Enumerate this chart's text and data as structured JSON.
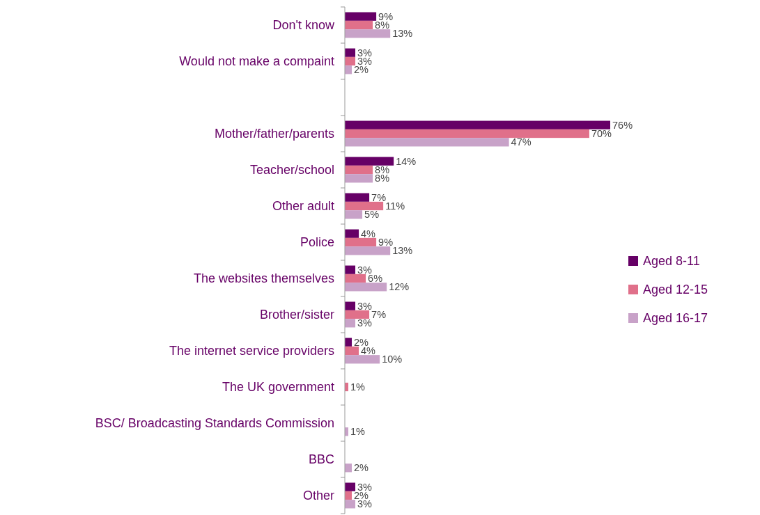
{
  "chart_data": {
    "type": "bar",
    "orientation": "horizontal",
    "categories": [
      "Don't know",
      "Would not make a compaint",
      null,
      "Mother/father/parents",
      "Teacher/school",
      "Other adult",
      "Police",
      "The websites themselves",
      "Brother/sister",
      "The internet service providers",
      "The UK government",
      "BSC/ Broadcasting Standards Commission",
      "BBC",
      "Other"
    ],
    "series": [
      {
        "name": "Aged 8-11",
        "color": "#660066",
        "values": [
          9,
          3,
          null,
          76,
          14,
          7,
          4,
          3,
          3,
          2,
          null,
          null,
          null,
          3
        ],
        "value_labels": [
          "9%",
          "3%",
          null,
          "76%",
          "14%",
          "7%",
          "4%",
          "3%",
          "3%",
          "2%",
          null,
          null,
          null,
          "3%"
        ]
      },
      {
        "name": "Aged 12-15",
        "color": "#e0708a",
        "values": [
          8,
          3,
          null,
          70,
          8,
          11,
          9,
          6,
          7,
          4,
          1,
          null,
          null,
          2
        ],
        "value_labels": [
          "8%",
          "3%",
          null,
          "70%",
          "8%",
          "11%",
          "9%",
          "6%",
          "7%",
          "4%",
          "1%",
          null,
          null,
          "2%"
        ]
      },
      {
        "name": "Aged 16-17",
        "color": "#c8a2c8",
        "values": [
          13,
          2,
          null,
          47,
          8,
          5,
          13,
          12,
          3,
          10,
          null,
          1,
          2,
          3
        ],
        "value_labels": [
          "13%",
          "2%",
          null,
          "47%",
          "8%",
          "5%",
          "13%",
          "12%",
          "3%",
          "10%",
          null,
          "1%",
          "2%",
          "3%"
        ]
      }
    ],
    "legend": "right"
  }
}
